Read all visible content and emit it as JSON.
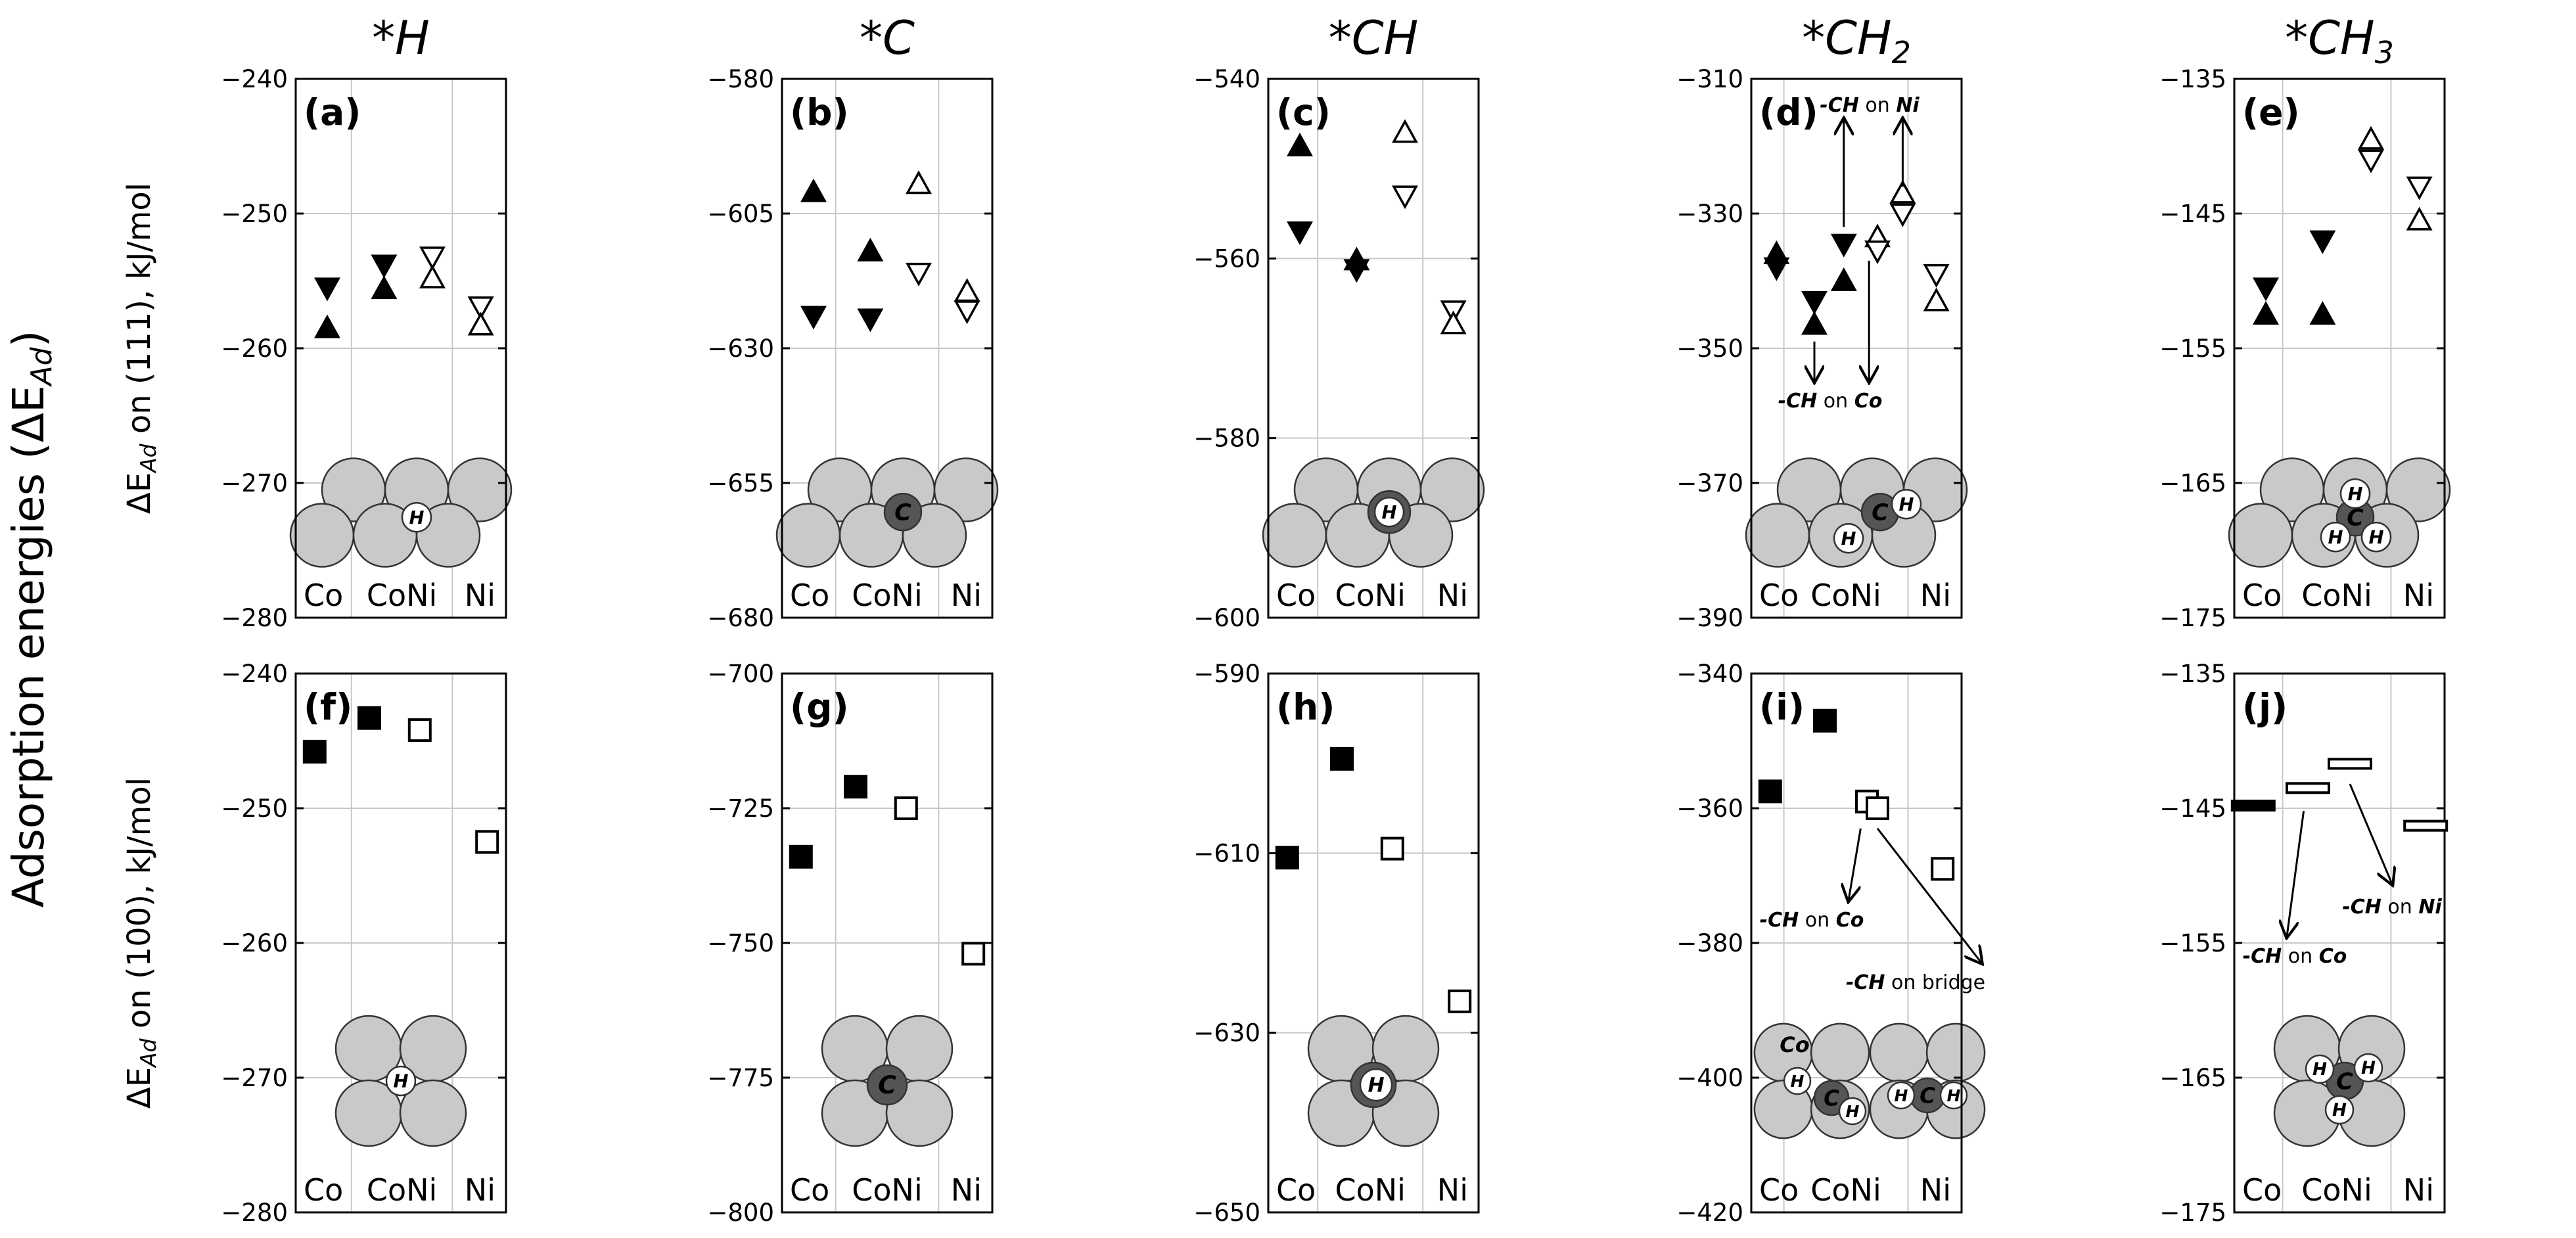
{
  "figure": {
    "super_ylabel": "Adsorption energies (ΔE",
    "super_ylabel_sub": "Ad",
    "super_ylabel_end": ")",
    "row_ylabels": [
      {
        "pre": "ΔE",
        "sub": "Ad",
        "post": " on (111), kJ/mol"
      },
      {
        "pre": "ΔE",
        "sub": "Ad",
        "post": " on (100), kJ/mol"
      }
    ],
    "column_titles": [
      {
        "main": "*H",
        "sub": ""
      },
      {
        "main": "*C",
        "sub": ""
      },
      {
        "main": "*CH",
        "sub": ""
      },
      {
        "main": "*CH",
        "sub": "2"
      },
      {
        "main": "*CH",
        "sub": "3"
      }
    ],
    "x_category_labels": [
      "Co",
      "CoNi",
      "Ni"
    ]
  },
  "chart_data": [
    {
      "panel": "(a)",
      "type": "scatter",
      "surface": "111",
      "adsorbate": "*H",
      "ylim": [
        -280,
        -240
      ],
      "yticks": [
        -240,
        -250,
        -260,
        -270,
        -280
      ],
      "points": [
        {
          "x": 0.15,
          "y": -255.5,
          "marker": "tri_down",
          "fill": "filled"
        },
        {
          "x": 0.15,
          "y": -258.5,
          "marker": "tri_up",
          "fill": "filled"
        },
        {
          "x": 0.42,
          "y": -253.8,
          "marker": "tri_down",
          "fill": "filled"
        },
        {
          "x": 0.42,
          "y": -255.6,
          "marker": "tri_up",
          "fill": "filled"
        },
        {
          "x": 0.65,
          "y": -253.2,
          "marker": "tri_down",
          "fill": "open"
        },
        {
          "x": 0.65,
          "y": -254.8,
          "marker": "tri_up",
          "fill": "open"
        },
        {
          "x": 0.88,
          "y": -256.9,
          "marker": "tri_down",
          "fill": "open"
        },
        {
          "x": 0.88,
          "y": -258.3,
          "marker": "tri_up",
          "fill": "open"
        }
      ]
    },
    {
      "panel": "(b)",
      "type": "scatter",
      "surface": "111",
      "adsorbate": "*C",
      "ylim": [
        -680,
        -580
      ],
      "yticks": [
        -580,
        -605,
        -630,
        -655,
        -680
      ],
      "points": [
        {
          "x": 0.15,
          "y": -601,
          "marker": "tri_up",
          "fill": "filled"
        },
        {
          "x": 0.15,
          "y": -624,
          "marker": "tri_down",
          "fill": "filled"
        },
        {
          "x": 0.42,
          "y": -612,
          "marker": "tri_up",
          "fill": "filled"
        },
        {
          "x": 0.42,
          "y": -624.5,
          "marker": "tri_down",
          "fill": "filled"
        },
        {
          "x": 0.65,
          "y": -599.5,
          "marker": "tri_up",
          "fill": "open"
        },
        {
          "x": 0.65,
          "y": -616,
          "marker": "tri_down",
          "fill": "open"
        },
        {
          "x": 0.88,
          "y": -619.5,
          "marker": "tri_up",
          "fill": "open"
        },
        {
          "x": 0.88,
          "y": -623,
          "marker": "tri_down",
          "fill": "open"
        }
      ]
    },
    {
      "panel": "(c)",
      "type": "scatter",
      "surface": "111",
      "adsorbate": "*CH",
      "ylim": [
        -600,
        -540
      ],
      "yticks": [
        -540,
        -560,
        -580,
        -600
      ],
      "points": [
        {
          "x": 0.15,
          "y": -547.5,
          "marker": "tri_up",
          "fill": "filled"
        },
        {
          "x": 0.15,
          "y": -557,
          "marker": "tri_down",
          "fill": "filled"
        },
        {
          "x": 0.42,
          "y": -560.2,
          "marker": "tri_up",
          "fill": "filled"
        },
        {
          "x": 0.42,
          "y": -561.2,
          "marker": "tri_down",
          "fill": "filled"
        },
        {
          "x": 0.65,
          "y": -546,
          "marker": "tri_up",
          "fill": "open"
        },
        {
          "x": 0.65,
          "y": -553,
          "marker": "tri_down",
          "fill": "open"
        },
        {
          "x": 0.88,
          "y": -565.8,
          "marker": "tri_down",
          "fill": "open"
        },
        {
          "x": 0.88,
          "y": -567.3,
          "marker": "tri_up",
          "fill": "open"
        }
      ]
    },
    {
      "panel": "(d)",
      "type": "scatter",
      "surface": "111",
      "adsorbate": "*CH2",
      "ylim": [
        -390,
        -310
      ],
      "yticks": [
        -310,
        -330,
        -350,
        -370,
        -390
      ],
      "points": [
        {
          "x": 0.12,
          "y": -336,
          "marker": "tri_up",
          "fill": "filled"
        },
        {
          "x": 0.12,
          "y": -338,
          "marker": "tri_down",
          "fill": "filled"
        },
        {
          "x": 0.3,
          "y": -343,
          "marker": "tri_down",
          "fill": "filled"
        },
        {
          "x": 0.3,
          "y": -346.5,
          "marker": "tri_up",
          "fill": "filled"
        },
        {
          "x": 0.44,
          "y": -334.5,
          "marker": "tri_down",
          "fill": "filled"
        },
        {
          "x": 0.44,
          "y": -340,
          "marker": "tri_up",
          "fill": "filled"
        },
        {
          "x": 0.6,
          "y": -333.5,
          "marker": "tri_up",
          "fill": "open"
        },
        {
          "x": 0.6,
          "y": -335.5,
          "marker": "tri_down",
          "fill": "open"
        },
        {
          "x": 0.72,
          "y": -327,
          "marker": "tri_up",
          "fill": "open"
        },
        {
          "x": 0.72,
          "y": -330,
          "marker": "tri_down",
          "fill": "open"
        },
        {
          "x": 0.88,
          "y": -339,
          "marker": "tri_down",
          "fill": "open"
        },
        {
          "x": 0.88,
          "y": -343,
          "marker": "tri_up",
          "fill": "open"
        }
      ],
      "annotations": [
        {
          "bold": "-CH",
          "mid": " on ",
          "bold2": "Ni"
        },
        {
          "bold": "-CH",
          "mid": " on ",
          "bold2": "Co"
        }
      ]
    },
    {
      "panel": "(e)",
      "type": "scatter",
      "surface": "111",
      "adsorbate": "*CH3",
      "ylim": [
        -175,
        -135
      ],
      "yticks": [
        -135,
        -145,
        -155,
        -165,
        -175
      ],
      "points": [
        {
          "x": 0.15,
          "y": -150.5,
          "marker": "tri_down",
          "fill": "filled"
        },
        {
          "x": 0.15,
          "y": -152.5,
          "marker": "tri_up",
          "fill": "filled"
        },
        {
          "x": 0.42,
          "y": -147,
          "marker": "tri_down",
          "fill": "filled"
        },
        {
          "x": 0.42,
          "y": -152.5,
          "marker": "tri_up",
          "fill": "filled"
        },
        {
          "x": 0.65,
          "y": -139.5,
          "marker": "tri_up",
          "fill": "open"
        },
        {
          "x": 0.65,
          "y": -141,
          "marker": "tri_down",
          "fill": "open"
        },
        {
          "x": 0.88,
          "y": -143,
          "marker": "tri_down",
          "fill": "open"
        },
        {
          "x": 0.88,
          "y": -145.5,
          "marker": "tri_up",
          "fill": "open"
        }
      ]
    },
    {
      "panel": "(f)",
      "type": "scatter",
      "surface": "100",
      "adsorbate": "*H",
      "ylim": [
        -280,
        -240
      ],
      "yticks": [
        -240,
        -250,
        -260,
        -270,
        -280
      ],
      "points": [
        {
          "x": 0.09,
          "y": -245.8,
          "marker": "square",
          "fill": "filled"
        },
        {
          "x": 0.35,
          "y": -243.3,
          "marker": "square",
          "fill": "filled"
        },
        {
          "x": 0.59,
          "y": -244.2,
          "marker": "square",
          "fill": "open"
        },
        {
          "x": 0.91,
          "y": -252.5,
          "marker": "square",
          "fill": "open"
        }
      ]
    },
    {
      "panel": "(g)",
      "type": "scatter",
      "surface": "100",
      "adsorbate": "*C",
      "ylim": [
        -800,
        -700
      ],
      "yticks": [
        -700,
        -725,
        -750,
        -775,
        -800
      ],
      "points": [
        {
          "x": 0.09,
          "y": -734,
          "marker": "square",
          "fill": "filled"
        },
        {
          "x": 0.35,
          "y": -721,
          "marker": "square",
          "fill": "filled"
        },
        {
          "x": 0.59,
          "y": -725,
          "marker": "square",
          "fill": "open"
        },
        {
          "x": 0.91,
          "y": -752,
          "marker": "square",
          "fill": "open"
        }
      ]
    },
    {
      "panel": "(h)",
      "type": "scatter",
      "surface": "100",
      "adsorbate": "*CH",
      "ylim": [
        -650,
        -590
      ],
      "yticks": [
        -590,
        -610,
        -630,
        -650
      ],
      "points": [
        {
          "x": 0.09,
          "y": -610.5,
          "marker": "square",
          "fill": "filled"
        },
        {
          "x": 0.35,
          "y": -599.5,
          "marker": "square",
          "fill": "filled"
        },
        {
          "x": 0.59,
          "y": -609.5,
          "marker": "square",
          "fill": "open"
        },
        {
          "x": 0.91,
          "y": -626.5,
          "marker": "square",
          "fill": "open"
        }
      ]
    },
    {
      "panel": "(i)",
      "type": "scatter",
      "surface": "100",
      "adsorbate": "*CH2",
      "ylim": [
        -420,
        -340
      ],
      "yticks": [
        -340,
        -360,
        -380,
        -400,
        -420
      ],
      "points": [
        {
          "x": 0.09,
          "y": -357.5,
          "marker": "square",
          "fill": "filled"
        },
        {
          "x": 0.35,
          "y": -347,
          "marker": "square",
          "fill": "filled"
        },
        {
          "x": 0.55,
          "y": -359,
          "marker": "square",
          "fill": "open"
        },
        {
          "x": 0.6,
          "y": -360,
          "marker": "square",
          "fill": "open"
        },
        {
          "x": 0.91,
          "y": -369,
          "marker": "square",
          "fill": "open"
        }
      ],
      "annotations": [
        {
          "bold": "-CH",
          "mid": " on ",
          "bold2": "Co"
        },
        {
          "bold": "-CH",
          "mid": " on bridge",
          "bold2": ""
        }
      ],
      "structure_labels": [
        "Co"
      ]
    },
    {
      "panel": "(j)",
      "type": "scatter",
      "surface": "100",
      "adsorbate": "*CH3",
      "ylim": [
        -175,
        -135
      ],
      "yticks": [
        -135,
        -145,
        -155,
        -165,
        -175
      ],
      "points": [
        {
          "x": 0.09,
          "y": -144.8,
          "marker": "bar",
          "fill": "filled"
        },
        {
          "x": 0.35,
          "y": -143.5,
          "marker": "bar",
          "fill": "open"
        },
        {
          "x": 0.55,
          "y": -141.7,
          "marker": "bar",
          "fill": "open"
        },
        {
          "x": 0.91,
          "y": -146.3,
          "marker": "bar",
          "fill": "open"
        }
      ],
      "annotations": [
        {
          "bold": "-CH",
          "mid": " on ",
          "bold2": "Co"
        },
        {
          "bold": "-CH",
          "mid": " on ",
          "bold2": "Ni"
        }
      ]
    }
  ]
}
